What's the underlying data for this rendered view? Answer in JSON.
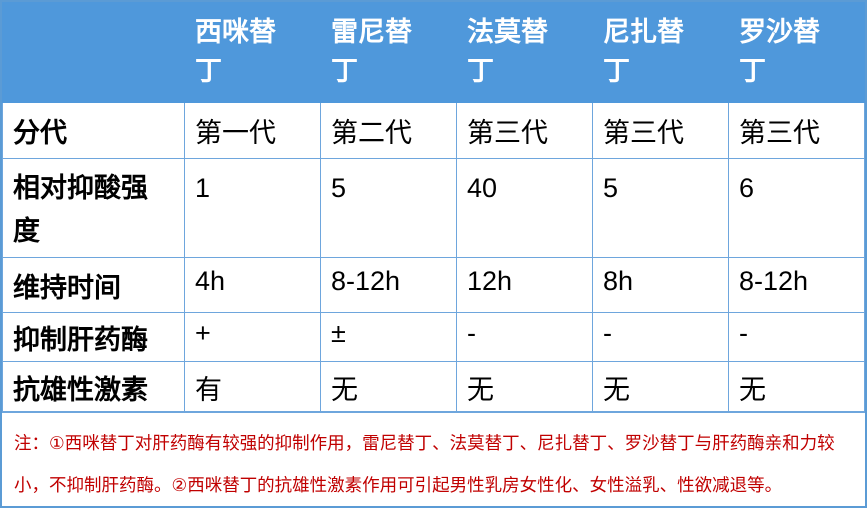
{
  "colors": {
    "header_bg": "#4f98db",
    "grid_border": "#6ea6dd",
    "outer_border": "#5b9bd5",
    "body_text": "#000000",
    "note_text": "#c00000"
  },
  "table": {
    "columns": {
      "blank": "",
      "cimetidine": "西咪替丁",
      "ranitidine": "雷尼替丁",
      "famotidine": "法莫替丁",
      "nizatidine": "尼扎替丁",
      "roxatidine": "罗沙替丁"
    },
    "rows": [
      {
        "label": "分代",
        "values": [
          "第一代",
          "第二代",
          "第三代",
          "第三代",
          "第三代"
        ]
      },
      {
        "label": "相对抑酸强度",
        "values": [
          "1",
          "5",
          "40",
          "5",
          "6"
        ]
      },
      {
        "label": "维持时间",
        "values": [
          "4h",
          "8-12h",
          "12h",
          "8h",
          "8-12h"
        ]
      },
      {
        "label": "抑制肝药酶",
        "values": [
          "+",
          "±",
          "-",
          "-",
          "-"
        ]
      },
      {
        "label": "抗雄性激素",
        "values": [
          "有",
          "无",
          "无",
          "无",
          "无"
        ]
      }
    ],
    "note": "注：①西咪替丁对肝药酶有较强的抑制作用，雷尼替丁、法莫替丁、尼扎替丁、罗沙替丁与肝药酶亲和力较小，不抑制肝药酶。②西咪替丁的抗雄性激素作用可引起男性乳房女性化、女性溢乳、性欲减退等。"
  }
}
